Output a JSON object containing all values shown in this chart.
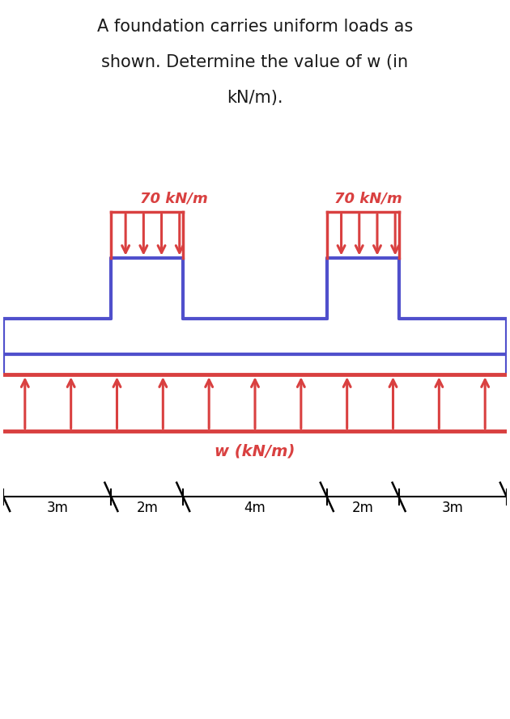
{
  "title_line1": "A foundation carries uniform loads as",
  "title_line2": "shown. Determine the value of w (in",
  "title_line3": "kN/m).",
  "title_fontsize": 15,
  "bg_color": "#ffffff",
  "label_70_left": "70 kN/m",
  "label_70_right": "70 kN/m",
  "label_w": "w (kN/m)",
  "red": "#d94040",
  "blue": "#5050cc",
  "dim_labels": [
    "3m",
    "2m",
    "4m",
    "2m",
    "3m"
  ],
  "segs": [
    0,
    3,
    5,
    9,
    11,
    14
  ]
}
